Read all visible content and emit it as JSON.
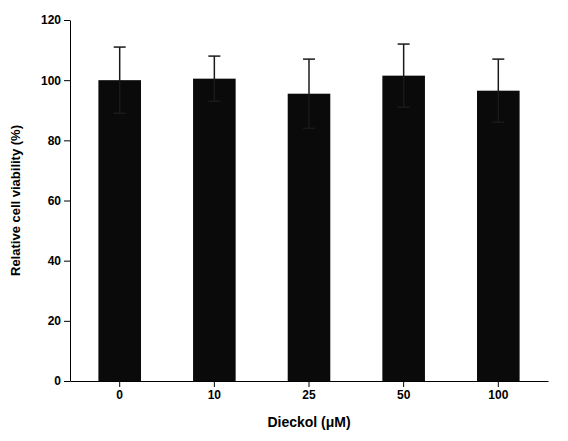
{
  "chart_data": {
    "type": "bar",
    "xlabel": "Dieckol (μM)",
    "ylabel": "Relative cell viability (%)",
    "categories": [
      "0",
      "10",
      "25",
      "50",
      "100"
    ],
    "values": [
      100.0,
      100.5,
      95.5,
      101.5,
      96.5
    ],
    "errors": [
      11.0,
      7.5,
      11.5,
      10.5,
      10.5
    ],
    "color": "#0a0a0a",
    "ylim": [
      0,
      120
    ],
    "yticks": [
      0,
      20,
      40,
      60,
      80,
      100,
      120
    ],
    "grid": false
  }
}
